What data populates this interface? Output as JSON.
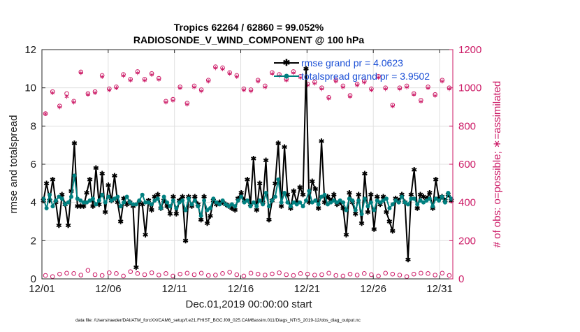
{
  "figure": {
    "title_line1": "Tropics 62264 / 62860 = 99.052%",
    "title_line2": "RADIOSONDE_V_WIND_COMPONENT @ 100 hPa",
    "footnote": "data file: /Users/raeder/DAI/ATM_forcXX/CAM6_setup/f.e21.FHIST_BGC.f09_025.CAM6assim.011/Diags_NTrS_2019-12/obs_diag_output.nc"
  },
  "colors": {
    "rmse": "#000000",
    "spread": "#008080",
    "obs": "#cc1a66",
    "legend_text": "#1a4fd6",
    "grid": "#e0e0e0"
  },
  "chart_data": {
    "type": "line",
    "title": "Tropics 62264 / 62860 = 99.052%\nRADIOSONDE_V_WIND_COMPONENT @ 100 hPa",
    "xlabel": "Dec.01,2019 00:00:00 start",
    "ylabel": "rmse and totalspread",
    "y2label": "# of obs: o=possible; ∗=assimilated",
    "xlim": [
      1,
      32
    ],
    "ylim": [
      0,
      12
    ],
    "y2lim": [
      0,
      1200
    ],
    "xticks": [
      1,
      6,
      11,
      16,
      21,
      26,
      31
    ],
    "xtick_labels": [
      "12/01",
      "12/06",
      "12/11",
      "12/16",
      "12/21",
      "12/26",
      "12/31"
    ],
    "yticks": [
      0,
      2,
      4,
      6,
      8,
      10,
      12
    ],
    "ytick_labels": [
      "0",
      "2",
      "4",
      "6",
      "8",
      "10",
      "12"
    ],
    "y2ticks": [
      0,
      200,
      400,
      600,
      800,
      1000,
      1200
    ],
    "y2tick_labels": [
      "0",
      "200",
      "400",
      "600",
      "800",
      "1000",
      "1200"
    ],
    "grid": true,
    "legend_position": "top-right",
    "series": [
      {
        "name": "rmse grand pr = 4.0623",
        "axis": "left",
        "values": [
          4.1,
          5.0,
          4.1,
          5.2,
          4.0,
          2.8,
          4.4,
          3.9,
          2.8,
          4.6,
          7.1,
          3.8,
          3.8,
          3.8,
          4.5,
          5.2,
          3.8,
          5.8,
          3.9,
          5.5,
          3.5,
          4.9,
          4.1,
          5.4,
          4.0,
          3.0,
          4.2,
          3.9,
          4.0,
          3.8,
          0.6,
          4.0,
          3.9,
          2.3,
          4.1,
          3.6,
          4.3,
          4.4,
          3.7,
          4.1,
          3.8,
          3.4,
          4.3,
          3.4,
          4.1,
          4.3,
          2.0,
          4.3,
          3.8,
          4.3,
          3.9,
          3.1,
          4.3,
          2.9,
          3.3,
          4.1,
          3.9,
          4.0,
          4.0,
          3.9,
          3.8,
          3.7,
          3.6,
          4.2,
          4.5,
          4.1,
          5.2,
          3.9,
          6.3,
          3.6,
          5.0,
          4.0,
          6.2,
          3.1,
          4.1,
          5.0,
          7.1,
          3.8,
          6.9,
          4.4,
          3.7,
          4.6,
          4.0,
          4.8,
          4.4,
          11.0,
          4.0,
          5.1,
          4.7,
          3.7,
          7.2,
          4.0,
          4.3,
          4.1,
          4.4,
          3.9,
          4.0,
          3.7,
          2.3,
          4.5,
          4.0,
          3.4,
          4.4,
          2.9,
          5.5,
          3.5,
          4.4,
          2.6,
          4.3,
          3.9,
          4.3,
          3.5,
          3.0,
          2.5,
          4.2,
          4.1,
          4.4,
          4.0,
          1.0,
          4.4,
          5.7,
          3.7,
          4.4,
          4.3,
          4.2,
          4.5,
          3.7,
          5.2,
          4.2,
          4.3,
          4.1,
          4.4,
          4.1
        ]
      },
      {
        "name": "totalspread grand pr = 3.9502",
        "axis": "left",
        "values": [
          4.2,
          3.7,
          4.4,
          3.8,
          4.1,
          4.3,
          4.2,
          3.9,
          4.0,
          4.3,
          5.4,
          4.2,
          4.1,
          4.0,
          4.0,
          4.1,
          4.2,
          3.9,
          4.1,
          4.4,
          4.0,
          4.3,
          4.1,
          4.2,
          4.3,
          3.8,
          4.0,
          4.3,
          4.0,
          3.9,
          3.9,
          4.1,
          4.4,
          4.0,
          4.0,
          3.9,
          4.1,
          4.2,
          3.7,
          4.3,
          4.0,
          3.8,
          4.1,
          3.7,
          4.0,
          4.1,
          3.6,
          4.2,
          3.9,
          4.1,
          3.8,
          3.3,
          4.1,
          3.6,
          3.7,
          4.2,
          4.0,
          3.9,
          4.1,
          3.9,
          3.8,
          3.9,
          3.8,
          4.1,
          4.3,
          4.0,
          4.1,
          3.8,
          4.0,
          3.8,
          4.1,
          3.9,
          4.5,
          3.8,
          4.1,
          4.3,
          5.2,
          4.0,
          4.5,
          4.0,
          3.8,
          4.0,
          3.9,
          4.0,
          3.8,
          4.1,
          4.6,
          4.0,
          4.1,
          3.9,
          4.3,
          4.4,
          3.9,
          4.0,
          4.1,
          4.0,
          4.1,
          4.0,
          3.6,
          4.2,
          4.1,
          3.6,
          4.1,
          3.4,
          4.2,
          3.8,
          4.0,
          3.6,
          4.1,
          4.0,
          4.1,
          4.2,
          3.7,
          3.9,
          4.1,
          4.0,
          4.3,
          4.0,
          3.9,
          4.2,
          4.2,
          3.9,
          4.1,
          4.0,
          4.1,
          4.2,
          3.8,
          4.2,
          4.1,
          4.3,
          4.0,
          4.5,
          4.2
        ]
      },
      {
        "name": "obs possible (o)",
        "axis": "right",
        "marker": "circle",
        "values": [
          865,
          980,
          905,
          970,
          930,
          1083,
          970,
          980,
          1065,
          995,
          1005,
          1070,
          1045,
          1085,
          1045,
          1075,
          1050,
          930,
          940,
          1005,
          920,
          1010,
          990,
          1040,
          1110,
          1105,
          1080,
          1065,
          995,
          990,
          1040,
          1010,
          1080,
          1070,
          1045,
          1085,
          1060,
          1020,
          1030,
          1000,
          950,
          1040,
          1010,
          960,
          1020,
          1035,
          995,
          1060,
          1000,
          910,
          1000,
          1010,
          970,
          935,
          1005,
          965,
          1040,
          1000
        ]
      },
      {
        "name": "obs assimilated (∗)",
        "axis": "right",
        "marker": "asterisk",
        "values": [
          865,
          975,
          900,
          955,
          925,
          1080,
          965,
          975,
          1060,
          990,
          1000,
          1065,
          1040,
          1080,
          1040,
          1070,
          1045,
          925,
          935,
          1000,
          915,
          1005,
          985,
          1035,
          1105,
          1100,
          1075,
          1060,
          990,
          985,
          1035,
          1005,
          1075,
          1065,
          1040,
          1080,
          1055,
          1015,
          1025,
          995,
          945,
          1035,
          1005,
          955,
          1015,
          1030,
          990,
          1055,
          995,
          905,
          995,
          1005,
          965,
          930,
          1000,
          960,
          1035,
          995
        ]
      },
      {
        "name": "obs low-count possible (o)",
        "axis": "right",
        "marker": "circle",
        "values": [
          18,
          12,
          25,
          30,
          28,
          20,
          45,
          22,
          18,
          32,
          28,
          15,
          38,
          28,
          22,
          32,
          20,
          28,
          15,
          25,
          30,
          22,
          30,
          18,
          20,
          28,
          35,
          22,
          15,
          30,
          25,
          20,
          26,
          32,
          22,
          18,
          28,
          25,
          20,
          22,
          30,
          18,
          15,
          25,
          20,
          28,
          22,
          15,
          30,
          25,
          20,
          12,
          25,
          30,
          28,
          20,
          30,
          18
        ]
      }
    ]
  }
}
